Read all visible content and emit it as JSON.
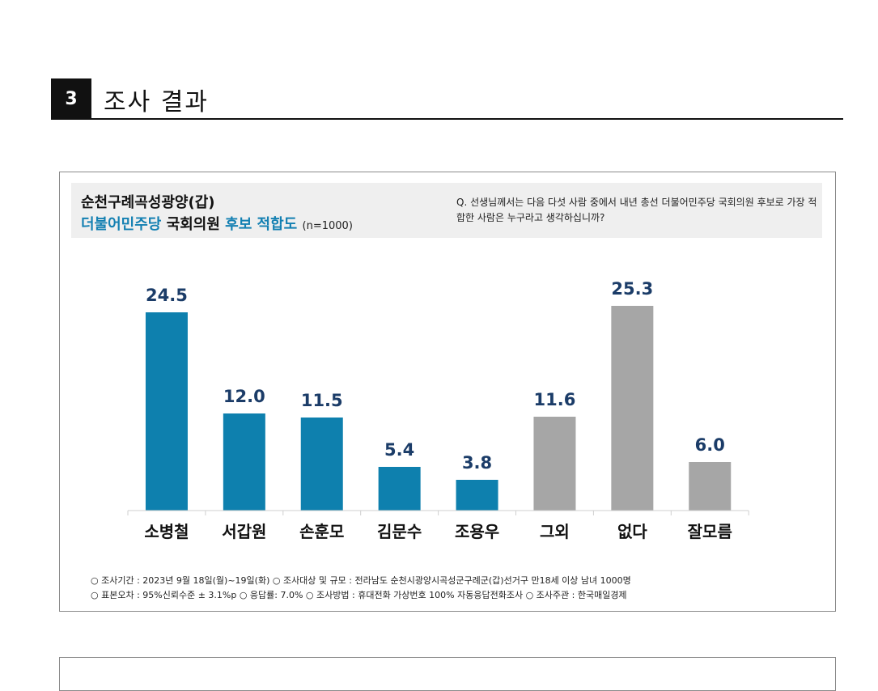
{
  "section": {
    "number": "3",
    "title": "조사 결과"
  },
  "header": {
    "title_line1": "순천구례곡성광양(갑)",
    "title_party": "더불어민주당",
    "title_role": "국회의원",
    "title_topic": "후보 적합도",
    "title_n": "(n=1000)",
    "question": "Q. 선생님께서는 다음 다섯 사람 중에서 내년 총선 더불어민주당 국회의원 후보로 가장 적합한 사람은 누구라고 생각하십니까?"
  },
  "colors": {
    "candidate": "#0e80ae",
    "other": "#a6a6a6",
    "value_text": "#1b3c68",
    "accent_text": "#1480b2"
  },
  "chart_data": {
    "type": "bar",
    "categories": [
      "소병철",
      "서갑원",
      "손훈모",
      "김문수",
      "조용우",
      "그외",
      "없다",
      "잘모름"
    ],
    "values": [
      24.5,
      12.0,
      11.5,
      5.4,
      3.8,
      11.6,
      25.3,
      6.0
    ],
    "value_labels": [
      "24.5",
      "12.0",
      "11.5",
      "5.4",
      "3.8",
      "11.6",
      "25.3",
      "6.0"
    ],
    "bar_colors": [
      "candidate",
      "candidate",
      "candidate",
      "candidate",
      "candidate",
      "other",
      "other",
      "other"
    ],
    "title": "",
    "xlabel": "",
    "ylabel": "",
    "ylim": [
      0,
      25.3
    ],
    "grid": false,
    "legend": "none"
  },
  "footnotes": {
    "line1": "○ 조사기간 : 2023년 9월 18일(월)~19일(화)   ○ 조사대상 및 규모 : 전라남도 순천시광양시곡성군구례군(갑)선거구 만18세 이상 남녀 1000명",
    "line2": "○ 표본오차 : 95%신뢰수준 ± 3.1%p   ○ 응답률: 7.0%   ○ 조사방법 : 휴대전화 가상번호 100% 자동응답전화조사   ○ 조사주관 : 한국매일경제"
  }
}
